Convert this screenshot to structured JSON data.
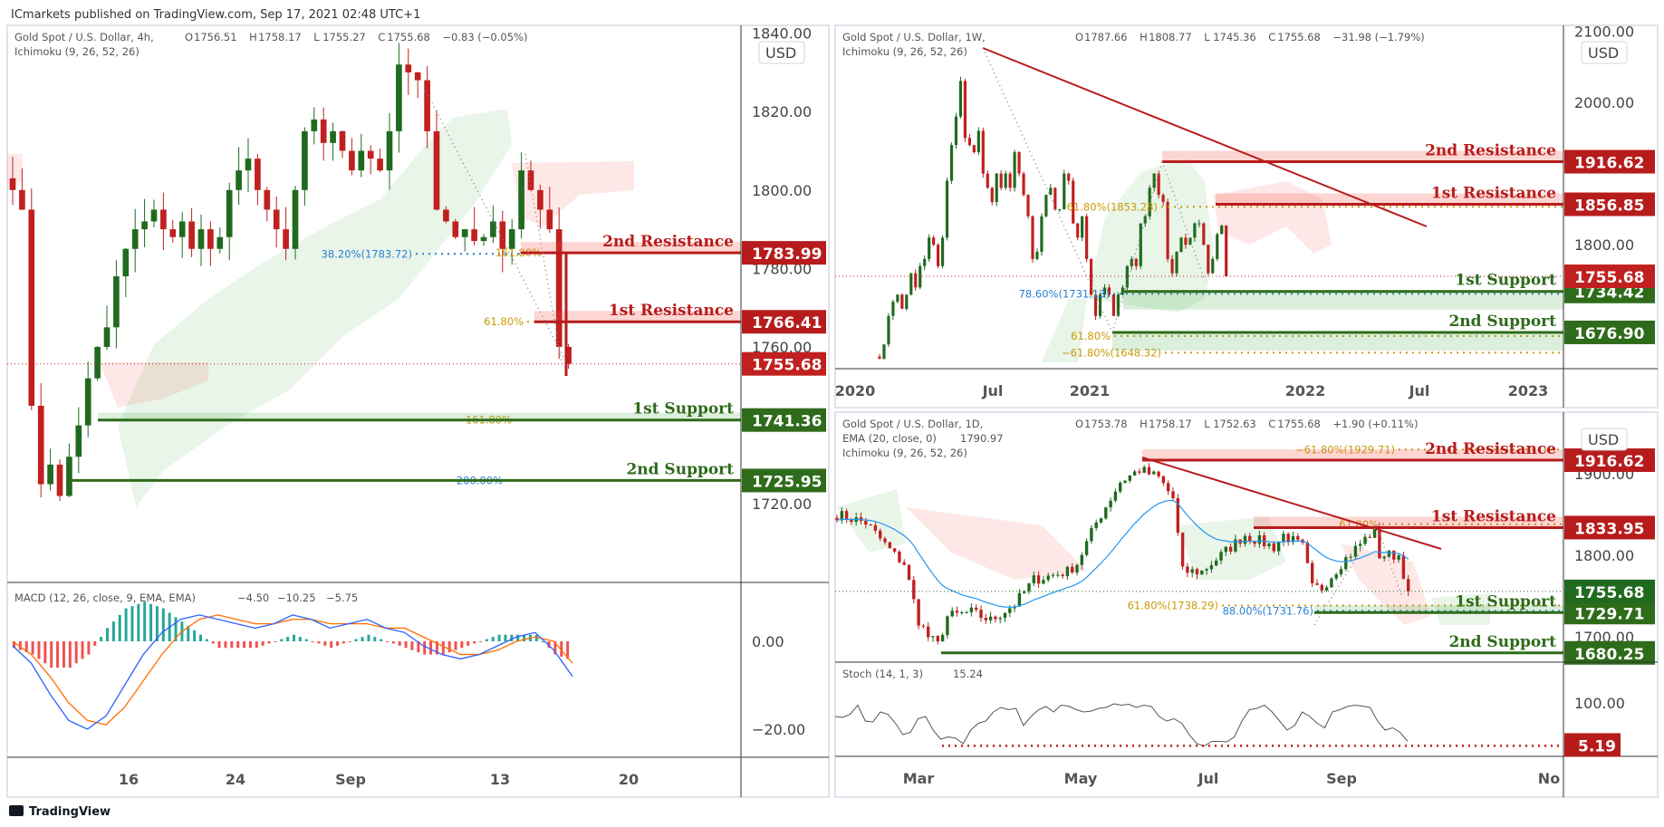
{
  "header": {
    "publisher": "ICmarkets published on TradingView.com, Sep 17, 2021 02:48 UTC+1"
  },
  "footer": {
    "brand": "TradingView"
  },
  "colors": {
    "up": "#206a1f",
    "down": "#c0201f",
    "resistance": "#b71c1c",
    "support": "#2e6b1a",
    "fib_gold": "#c99a06",
    "fib_blue": "#2a7fd4",
    "ema": "#2196f3",
    "macd": "#2962ff",
    "signal": "#ff6d00",
    "stoch": "#555555"
  },
  "chart_data": [
    {
      "type": "candlestick",
      "title": "Gold Spot / U.S. Dollar, 4h,",
      "indicators": [
        "Ichimoku (9, 26, 52, 26)"
      ],
      "ohlc": {
        "o_label": "O",
        "o": "1756.51",
        "h_label": "H",
        "h": "1758.17",
        "l_label": "L",
        "l": "1755.27",
        "c_label": "C",
        "c": "1755.68",
        "change": "−0.83 (−0.05%)"
      },
      "currency": "USD",
      "current_price": "1755.68",
      "y_ticks": [
        "1720.00",
        "1760.00",
        "1780.00",
        "1800.00",
        "1820.00",
        "1840.00"
      ],
      "y_tick_values": [
        1720,
        1760,
        1780,
        1800,
        1820,
        1840
      ],
      "x_ticks": [
        "16",
        "24",
        "Sep",
        "13",
        "20"
      ],
      "closes": [
        1800,
        1795,
        1745,
        1725,
        1730,
        1722,
        1732,
        1740,
        1752,
        1760,
        1765,
        1778,
        1785,
        1790,
        1792,
        1795,
        1790,
        1788,
        1792,
        1785,
        1790,
        1785,
        1788,
        1800,
        1805,
        1808,
        1800,
        1795,
        1790,
        1785,
        1800,
        1815,
        1818,
        1812,
        1815,
        1810,
        1805,
        1810,
        1808,
        1805,
        1815,
        1832,
        1830,
        1828,
        1815,
        1795,
        1792,
        1788,
        1790,
        1787,
        1788,
        1792,
        1785,
        1790,
        1805,
        1800,
        1795,
        1790,
        1760,
        1755.68
      ],
      "levels": [
        {
          "name": "2nd Resistance",
          "value": "1783.99",
          "price": 1783.99,
          "kind": "resistance"
        },
        {
          "name": "1st Resistance",
          "value": "1766.41",
          "price": 1766.41,
          "kind": "resistance"
        },
        {
          "name": "1st Support",
          "value": "1741.36",
          "price": 1741.36,
          "kind": "support"
        },
        {
          "name": "2nd Support",
          "value": "1725.95",
          "price": 1725.95,
          "kind": "support"
        }
      ],
      "fib_labels": [
        {
          "text": "38.20%(1783.72)",
          "price": 1783.72,
          "color": "blue"
        },
        {
          "text": "161.80%",
          "price": 1783.99,
          "color": "gold"
        },
        {
          "text": "61.80%",
          "price": 1766.41,
          "color": "gold"
        },
        {
          "text": "161.80%",
          "price": 1741.36,
          "color": "gold"
        },
        {
          "text": "200.00%",
          "price": 1725.95,
          "color": "blue"
        }
      ],
      "macd": {
        "label": "MACD (12, 26, close, 9, EMA, EMA)",
        "hist": "−4.50",
        "macd": "−10.25",
        "signal": "−5.75",
        "y_ticks": [
          "0.00",
          "−20.00"
        ],
        "y_tick_values": [
          0,
          -20
        ],
        "macd_line": [
          -1,
          -5,
          -12,
          -18,
          -20,
          -17,
          -10,
          -3,
          2,
          5,
          6,
          5,
          4,
          3,
          4,
          6,
          5,
          3,
          4,
          5,
          3,
          2,
          -1,
          -3,
          -4,
          -3,
          -1,
          1,
          2,
          -2,
          -8
        ],
        "signal_line": [
          0,
          -3,
          -8,
          -14,
          -18,
          -19,
          -15,
          -9,
          -3,
          2,
          5,
          6,
          5,
          4,
          4,
          5,
          5,
          4,
          4,
          4,
          3,
          3,
          1,
          -1,
          -3,
          -3,
          -2,
          0,
          1,
          0,
          -5
        ]
      }
    },
    {
      "type": "candlestick",
      "title": "Gold Spot / U.S. Dollar, 1W,",
      "indicators": [
        "Ichimoku (9, 26, 52, 26)"
      ],
      "ohlc": {
        "o_label": "O",
        "o": "1787.66",
        "h_label": "H",
        "h": "1808.77",
        "l_label": "L",
        "l": "1745.36",
        "c_label": "C",
        "c": "1755.68",
        "change": "−31.98 (−1.79%)"
      },
      "currency": "USD",
      "current_price": "1755.68",
      "y_ticks": [
        "2100.00",
        "2000.00",
        "1800.00"
      ],
      "y_tick_values": [
        2100,
        2000,
        1800
      ],
      "x_ticks": [
        "2020",
        "Jul",
        "2021",
        "2022",
        "Jul",
        "2023"
      ],
      "closes": [
        1640,
        1660,
        1700,
        1720,
        1730,
        1710,
        1730,
        1760,
        1740,
        1770,
        1780,
        1810,
        1800,
        1770,
        1810,
        1890,
        1940,
        1980,
        2030,
        1950,
        1940,
        1930,
        1960,
        1900,
        1880,
        1860,
        1900,
        1880,
        1900,
        1880,
        1930,
        1900,
        1870,
        1840,
        1780,
        1790,
        1840,
        1870,
        1880,
        1850,
        1850,
        1900,
        1890,
        1830,
        1810,
        1840,
        1780,
        1730,
        1700,
        1730,
        1740,
        1730,
        1700,
        1730,
        1740,
        1770,
        1780,
        1770,
        1830,
        1840,
        1880,
        1900,
        1870,
        1860,
        1780,
        1760,
        1790,
        1810,
        1800,
        1810,
        1830,
        1830,
        1800,
        1760,
        1780,
        1815,
        1827,
        1755.68
      ],
      "levels": [
        {
          "name": "2nd Resistance",
          "value": "1916.62",
          "price": 1916.62,
          "kind": "resistance"
        },
        {
          "name": "1st Resistance",
          "value": "1856.85",
          "price": 1856.85,
          "kind": "resistance"
        },
        {
          "name": "1st Support",
          "value": "1734.42",
          "price": 1734.42,
          "kind": "support"
        },
        {
          "name": "2nd Support",
          "value": "1676.90",
          "price": 1676.9,
          "kind": "support"
        }
      ],
      "fib_labels": [
        {
          "text": "61.80%(1853.28)",
          "price": 1853.28,
          "color": "gold"
        },
        {
          "text": "78.60%(1731.13)",
          "price": 1731.13,
          "color": "blue"
        },
        {
          "text": "61.80%",
          "price": 1671.8,
          "color": "gold"
        },
        {
          "text": "−61.80%(1648.32)",
          "price": 1648.32,
          "color": "gold"
        }
      ]
    },
    {
      "type": "candlestick",
      "title": "Gold Spot / U.S. Dollar, 1D,",
      "indicators": [
        "EMA (20, close, 0)",
        "Ichimoku (9, 26, 52, 26)"
      ],
      "ema_value": "1790.97",
      "ohlc": {
        "o_label": "O",
        "o": "1753.78",
        "h_label": "H",
        "h": "1758.17",
        "l_label": "L",
        "l": "1752.63",
        "c_label": "C",
        "c": "1755.68",
        "change": "+1.90 (+0.11%)"
      },
      "currency": "USD",
      "current_price": "1755.68",
      "y_ticks": [
        "1900.00",
        "1800.00",
        "1700.00"
      ],
      "y_tick_values": [
        1900,
        1800,
        1700
      ],
      "x_ticks": [
        "Mar",
        "May",
        "Jul",
        "Sep",
        "No"
      ],
      "close_keypoints": [
        [
          0,
          1850
        ],
        [
          6,
          1840
        ],
        [
          9,
          1820
        ],
        [
          12,
          1800
        ],
        [
          14,
          1790
        ],
        [
          17,
          1720
        ],
        [
          19,
          1700
        ],
        [
          21,
          1690
        ],
        [
          23,
          1725
        ],
        [
          28,
          1730
        ],
        [
          32,
          1720
        ],
        [
          37,
          1740
        ],
        [
          41,
          1770
        ],
        [
          48,
          1780
        ],
        [
          50,
          1790
        ],
        [
          54,
          1840
        ],
        [
          59,
          1890
        ],
        [
          63,
          1905
        ],
        [
          67,
          1895
        ],
        [
          70,
          1870
        ],
        [
          72,
          1780
        ],
        [
          76,
          1780
        ],
        [
          82,
          1810
        ],
        [
          85,
          1825
        ],
        [
          91,
          1810
        ],
        [
          93,
          1825
        ],
        [
          97,
          1810
        ],
        [
          99,
          1760
        ],
        [
          101,
          1760
        ],
        [
          105,
          1790
        ],
        [
          110,
          1820
        ],
        [
          112,
          1830
        ],
        [
          113,
          1800
        ],
        [
          117,
          1800
        ],
        [
          119,
          1755.68
        ]
      ],
      "levels": [
        {
          "name": "2nd Resistance",
          "value": "1916.62",
          "price": 1916.62,
          "kind": "resistance"
        },
        {
          "name": "1st Resistance",
          "value": "1833.95",
          "price": 1833.95,
          "kind": "resistance"
        },
        {
          "name": "1st Support",
          "value": "1729.71",
          "price": 1729.71,
          "kind": "support"
        },
        {
          "name": "2nd Support",
          "value": "1680.25",
          "price": 1680.25,
          "kind": "support"
        }
      ],
      "fib_labels": [
        {
          "text": "−61.80%(1929.71)",
          "price": 1929.71,
          "color": "gold"
        },
        {
          "text": "61.80%",
          "price": 1838,
          "color": "gold"
        },
        {
          "text": "61.80%(1738.29)",
          "price": 1738.29,
          "color": "gold"
        },
        {
          "text": "88.00%(1731.76)",
          "price": 1731.76,
          "color": "blue"
        }
      ],
      "stoch": {
        "label": "Stoch (14, 1, 3)",
        "value": "15.24",
        "marker": "5.19",
        "marker_value": 5.19,
        "y_ticks": [
          "100.00"
        ],
        "y_tick_values": [
          100
        ],
        "values": [
          70,
          68,
          75,
          95,
          60,
          58,
          80,
          75,
          55,
          30,
          35,
          65,
          70,
          40,
          20,
          25,
          22,
          10,
          40,
          55,
          60,
          80,
          90,
          85,
          88,
          50,
          70,
          85,
          92,
          80,
          95,
          93,
          85,
          80,
          82,
          88,
          90,
          98,
          95,
          97,
          90,
          95,
          92,
          70,
          60,
          65,
          55,
          30,
          10,
          5,
          15,
          15,
          14,
          25,
          60,
          85,
          88,
          95,
          80,
          60,
          40,
          50,
          80,
          70,
          55,
          45,
          80,
          85,
          92,
          95,
          93,
          90,
          60,
          40,
          45,
          35,
          15
        ]
      }
    }
  ]
}
